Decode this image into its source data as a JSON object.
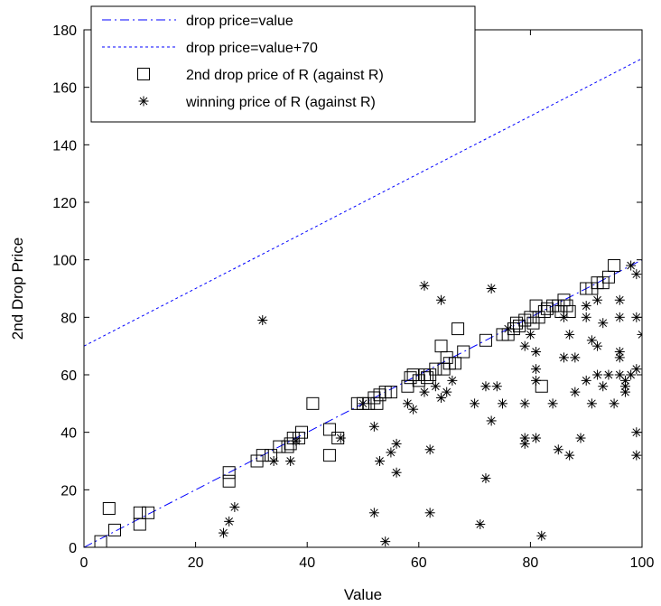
{
  "chart_data": {
    "type": "scatter",
    "xlabel": "Value",
    "ylabel": "2nd Drop Price",
    "xlim": [
      0,
      100
    ],
    "ylim": [
      0,
      180
    ],
    "xticks": [
      0,
      20,
      40,
      60,
      80,
      100
    ],
    "yticks": [
      0,
      20,
      40,
      60,
      80,
      100,
      120,
      140,
      160,
      180
    ],
    "grid": false,
    "legend_position": "top-left",
    "colors": {
      "line": "#0000ff",
      "markers": "#000000",
      "axes": "#000000"
    },
    "series": [
      {
        "name": "drop price=value",
        "kind": "line",
        "style": "dash-dot",
        "x": [
          0,
          100
        ],
        "y": [
          0,
          100
        ]
      },
      {
        "name": "drop price=value+70",
        "kind": "line",
        "style": "dotted",
        "x": [
          0,
          100
        ],
        "y": [
          70,
          170
        ]
      },
      {
        "name": "2nd drop price of R (against R)",
        "kind": "scatter",
        "marker": "square",
        "points": [
          [
            3,
            2
          ],
          [
            4.5,
            13.5
          ],
          [
            5.5,
            6
          ],
          [
            10,
            8
          ],
          [
            10,
            12
          ],
          [
            11.5,
            12
          ],
          [
            26,
            23
          ],
          [
            26,
            26
          ],
          [
            31,
            30
          ],
          [
            32,
            32
          ],
          [
            33.5,
            32
          ],
          [
            35,
            35
          ],
          [
            36.5,
            35
          ],
          [
            37,
            36
          ],
          [
            37.5,
            38
          ],
          [
            38.5,
            38
          ],
          [
            39,
            40
          ],
          [
            41,
            50
          ],
          [
            44,
            41
          ],
          [
            44,
            32
          ],
          [
            45.5,
            38
          ],
          [
            49,
            50
          ],
          [
            50,
            50
          ],
          [
            51,
            50
          ],
          [
            52,
            52
          ],
          [
            52.5,
            50
          ],
          [
            53,
            53
          ],
          [
            54,
            54
          ],
          [
            55,
            54
          ],
          [
            58,
            56
          ],
          [
            58.5,
            59
          ],
          [
            59,
            60
          ],
          [
            60,
            58
          ],
          [
            61,
            60
          ],
          [
            61.5,
            59
          ],
          [
            62,
            60
          ],
          [
            63,
            62
          ],
          [
            64,
            70
          ],
          [
            64.5,
            62
          ],
          [
            65,
            66
          ],
          [
            65.5,
            64
          ],
          [
            66.5,
            64
          ],
          [
            67,
            76
          ],
          [
            68,
            68
          ],
          [
            72,
            72
          ],
          [
            75,
            74
          ],
          [
            76,
            74
          ],
          [
            77,
            76
          ],
          [
            77.5,
            78
          ],
          [
            78,
            77
          ],
          [
            79,
            79
          ],
          [
            80,
            80
          ],
          [
            80.5,
            78
          ],
          [
            81,
            84
          ],
          [
            81.5,
            80
          ],
          [
            82,
            56
          ],
          [
            82.5,
            82
          ],
          [
            83,
            83
          ],
          [
            84,
            84
          ],
          [
            85,
            84
          ],
          [
            85.5,
            82
          ],
          [
            86,
            86
          ],
          [
            86.5,
            84
          ],
          [
            87,
            82
          ],
          [
            90,
            90
          ],
          [
            91,
            90
          ],
          [
            92,
            92
          ],
          [
            93,
            92
          ],
          [
            94,
            94
          ],
          [
            95,
            98
          ]
        ]
      },
      {
        "name": "winning price of R (against R)",
        "kind": "scatter",
        "marker": "asterisk",
        "points": [
          [
            25,
            5
          ],
          [
            26,
            9
          ],
          [
            27,
            14
          ],
          [
            32,
            79
          ],
          [
            34,
            30
          ],
          [
            37,
            30
          ],
          [
            38,
            37
          ],
          [
            46,
            38
          ],
          [
            50,
            50
          ],
          [
            52,
            12
          ],
          [
            52,
            42
          ],
          [
            53,
            30
          ],
          [
            54,
            2
          ],
          [
            55,
            33
          ],
          [
            56,
            26
          ],
          [
            56,
            36
          ],
          [
            58,
            50
          ],
          [
            59,
            48
          ],
          [
            61,
            91
          ],
          [
            61,
            54
          ],
          [
            62,
            12
          ],
          [
            62,
            34
          ],
          [
            63,
            56
          ],
          [
            64,
            86
          ],
          [
            64,
            52
          ],
          [
            65,
            54
          ],
          [
            66,
            58
          ],
          [
            70,
            50
          ],
          [
            71,
            8
          ],
          [
            72,
            24
          ],
          [
            72,
            56
          ],
          [
            73,
            90
          ],
          [
            73,
            44
          ],
          [
            74,
            56
          ],
          [
            75,
            50
          ],
          [
            76,
            76
          ],
          [
            79,
            70
          ],
          [
            79,
            50
          ],
          [
            79,
            36
          ],
          [
            79,
            38
          ],
          [
            80,
            74
          ],
          [
            81,
            68
          ],
          [
            81,
            38
          ],
          [
            81,
            62
          ],
          [
            81,
            58
          ],
          [
            82,
            4
          ],
          [
            84,
            50
          ],
          [
            85,
            34
          ],
          [
            86,
            80
          ],
          [
            86,
            66
          ],
          [
            87,
            32
          ],
          [
            87,
            74
          ],
          [
            88,
            66
          ],
          [
            88,
            54
          ],
          [
            89,
            38
          ],
          [
            90,
            84
          ],
          [
            90,
            80
          ],
          [
            90,
            58
          ],
          [
            91,
            72
          ],
          [
            91,
            50
          ],
          [
            92,
            86
          ],
          [
            92,
            70
          ],
          [
            92,
            60
          ],
          [
            93,
            78
          ],
          [
            93,
            56
          ],
          [
            94,
            60
          ],
          [
            95,
            50
          ],
          [
            96,
            86
          ],
          [
            96,
            80
          ],
          [
            96,
            68
          ],
          [
            96,
            60
          ],
          [
            96,
            66
          ],
          [
            97,
            56
          ],
          [
            97,
            58
          ],
          [
            97,
            54
          ],
          [
            98,
            98
          ],
          [
            98,
            60
          ],
          [
            99,
            95
          ],
          [
            99,
            80
          ],
          [
            99,
            62
          ],
          [
            99,
            40
          ],
          [
            99,
            32
          ],
          [
            100,
            74
          ]
        ]
      }
    ]
  }
}
